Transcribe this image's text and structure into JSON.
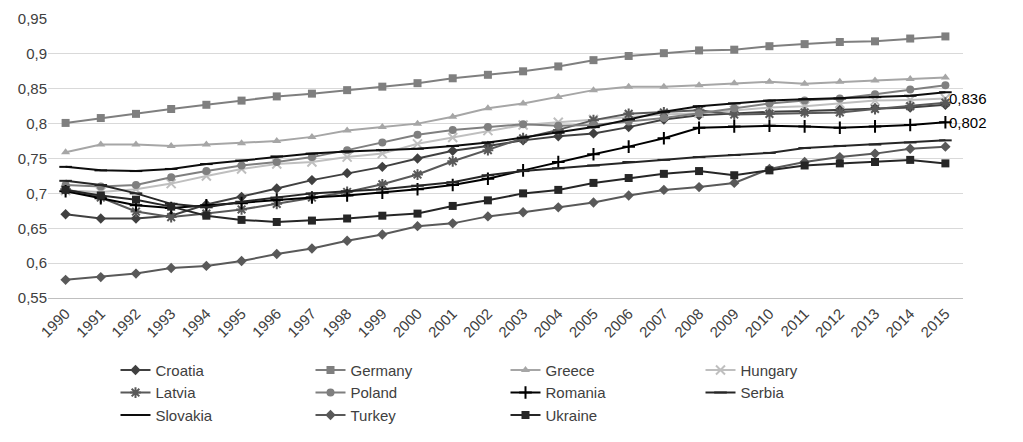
{
  "chart_data": {
    "type": "line",
    "categories": [
      "1990",
      "1991",
      "1992",
      "1993",
      "1994",
      "1995",
      "1996",
      "1997",
      "1998",
      "1999",
      "2000",
      "2001",
      "2002",
      "2003",
      "2004",
      "2005",
      "2006",
      "2007",
      "2008",
      "2009",
      "2010",
      "2011",
      "2012",
      "2013",
      "2014",
      "2015"
    ],
    "ylim": [
      0.55,
      0.95
    ],
    "yticks": [
      {
        "value": 0.55,
        "label": "0,55"
      },
      {
        "value": 0.6,
        "label": "0,6"
      },
      {
        "value": 0.65,
        "label": "0,65"
      },
      {
        "value": 0.7,
        "label": "0,7"
      },
      {
        "value": 0.75,
        "label": "0,75"
      },
      {
        "value": 0.8,
        "label": "0,8"
      },
      {
        "value": 0.85,
        "label": "0,85"
      },
      {
        "value": 0.9,
        "label": "0,9"
      },
      {
        "value": 0.95,
        "label": "0,95"
      }
    ],
    "grid": true,
    "legend": "bottom",
    "annotations": [
      {
        "text": "0,836",
        "x": "2015",
        "y": 0.836
      },
      {
        "text": "0,802",
        "x": "2015",
        "y": 0.802
      }
    ],
    "series": [
      {
        "name": "Croatia",
        "color": "#404040",
        "marker": "diamond",
        "values": [
          0.67,
          0.664,
          0.664,
          0.668,
          0.684,
          0.695,
          0.707,
          0.719,
          0.729,
          0.738,
          0.75,
          0.761,
          0.768,
          0.776,
          0.782,
          0.786,
          0.795,
          0.806,
          0.812,
          0.815,
          0.817,
          0.818,
          0.82,
          0.822,
          0.823,
          0.827
        ]
      },
      {
        "name": "Germany",
        "color": "#7f7f7f",
        "marker": "square",
        "values": [
          0.801,
          0.808,
          0.814,
          0.821,
          0.827,
          0.833,
          0.839,
          0.843,
          0.848,
          0.853,
          0.858,
          0.865,
          0.87,
          0.875,
          0.882,
          0.891,
          0.897,
          0.901,
          0.905,
          0.906,
          0.911,
          0.914,
          0.917,
          0.918,
          0.922,
          0.925
        ]
      },
      {
        "name": "Greece",
        "color": "#a6a6a6",
        "marker": "triangle",
        "values": [
          0.759,
          0.77,
          0.77,
          0.768,
          0.77,
          0.772,
          0.775,
          0.781,
          0.79,
          0.795,
          0.8,
          0.81,
          0.822,
          0.829,
          0.838,
          0.848,
          0.853,
          0.853,
          0.855,
          0.858,
          0.86,
          0.857,
          0.86,
          0.862,
          0.864,
          0.866
        ]
      },
      {
        "name": "Hungary",
        "color": "#bfbfbf",
        "marker": "x",
        "values": [
          0.704,
          0.702,
          0.706,
          0.714,
          0.725,
          0.735,
          0.742,
          0.745,
          0.752,
          0.757,
          0.771,
          0.78,
          0.79,
          0.798,
          0.802,
          0.806,
          0.81,
          0.813,
          0.815,
          0.819,
          0.823,
          0.825,
          0.829,
          0.833,
          0.834,
          0.836
        ]
      },
      {
        "name": "Latvia",
        "color": "#595959",
        "marker": "asterisk",
        "values": [
          0.706,
          0.694,
          0.674,
          0.666,
          0.671,
          0.677,
          0.685,
          0.694,
          0.702,
          0.713,
          0.727,
          0.746,
          0.762,
          0.779,
          0.791,
          0.805,
          0.814,
          0.816,
          0.819,
          0.813,
          0.814,
          0.816,
          0.816,
          0.821,
          0.825,
          0.83
        ]
      },
      {
        "name": "Poland",
        "color": "#7f7f7f",
        "marker": "circle",
        "values": [
          0.712,
          0.71,
          0.712,
          0.723,
          0.732,
          0.74,
          0.745,
          0.752,
          0.762,
          0.773,
          0.784,
          0.791,
          0.795,
          0.799,
          0.797,
          0.798,
          0.803,
          0.808,
          0.815,
          0.822,
          0.829,
          0.833,
          0.836,
          0.842,
          0.849,
          0.855
        ]
      },
      {
        "name": "Romania",
        "color": "#000000",
        "marker": "cross",
        "values": [
          0.703,
          0.693,
          0.683,
          0.679,
          0.683,
          0.686,
          0.691,
          0.694,
          0.697,
          0.701,
          0.706,
          0.712,
          0.721,
          0.733,
          0.745,
          0.756,
          0.767,
          0.779,
          0.794,
          0.796,
          0.797,
          0.796,
          0.794,
          0.796,
          0.798,
          0.802
        ]
      },
      {
        "name": "Serbia",
        "color": "#262626",
        "marker": "dash",
        "values": [
          0.718,
          0.712,
          0.7,
          0.685,
          0.68,
          0.688,
          0.694,
          0.7,
          0.703,
          0.706,
          0.711,
          0.716,
          0.726,
          0.732,
          0.736,
          0.74,
          0.745,
          0.748,
          0.752,
          0.755,
          0.758,
          0.765,
          0.768,
          0.77,
          0.773,
          0.776
        ]
      },
      {
        "name": "Slovakia",
        "color": "#0d0d0d",
        "marker": "dash",
        "values": [
          0.738,
          0.733,
          0.732,
          0.735,
          0.742,
          0.747,
          0.753,
          0.757,
          0.76,
          0.762,
          0.764,
          0.768,
          0.773,
          0.78,
          0.787,
          0.795,
          0.806,
          0.817,
          0.825,
          0.829,
          0.833,
          0.835,
          0.836,
          0.838,
          0.84,
          0.845
        ]
      },
      {
        "name": "Turkey",
        "color": "#595959",
        "marker": "diamond",
        "values": [
          0.576,
          0.58,
          0.585,
          0.593,
          0.596,
          0.603,
          0.613,
          0.621,
          0.632,
          0.641,
          0.653,
          0.657,
          0.667,
          0.673,
          0.68,
          0.687,
          0.697,
          0.705,
          0.709,
          0.715,
          0.735,
          0.745,
          0.752,
          0.757,
          0.764,
          0.767
        ]
      },
      {
        "name": "Ukraine",
        "color": "#262626",
        "marker": "square",
        "values": [
          0.705,
          0.697,
          0.691,
          0.681,
          0.668,
          0.662,
          0.659,
          0.661,
          0.664,
          0.668,
          0.671,
          0.682,
          0.69,
          0.7,
          0.705,
          0.715,
          0.722,
          0.728,
          0.732,
          0.726,
          0.733,
          0.74,
          0.743,
          0.745,
          0.748,
          0.743
        ]
      }
    ]
  }
}
